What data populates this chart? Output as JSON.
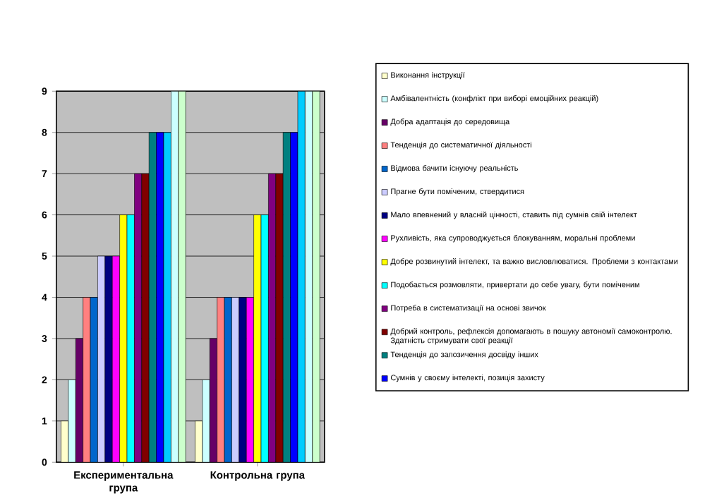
{
  "chart_data": {
    "type": "bar",
    "categories": [
      "Експериментальна група",
      "Контрольна група"
    ],
    "ylim": [
      0,
      9
    ],
    "yticks": [
      0,
      1,
      2,
      3,
      4,
      5,
      6,
      7,
      8,
      9
    ],
    "grid": "y",
    "legend": "right",
    "series": [
      {
        "name": "Виконання інструкції",
        "color": "#ffffcc",
        "values": [
          1,
          1
        ]
      },
      {
        "name": "Амбівалентність (конфлікт при виборі емоційних реакцій)",
        "color": "#ccffff",
        "values": [
          2,
          2
        ]
      },
      {
        "name": "Добра адаптація до середовища",
        "color": "#660066",
        "values": [
          3,
          3
        ]
      },
      {
        "name": "Тенденція до систематичної діяльності",
        "color": "#ff8080",
        "values": [
          4,
          4
        ]
      },
      {
        "name": "Відмова бачити існуючу реальність",
        "color": "#0066cc",
        "values": [
          4,
          4
        ]
      },
      {
        "name": "Прагне бути поміченим, ствердитися",
        "color": "#ccccff",
        "values": [
          5,
          4
        ]
      },
      {
        "name": "Мало впевнений у власній цінності, ставить під сумнів свій інтелект",
        "color": "#000080",
        "values": [
          5,
          4
        ]
      },
      {
        "name": "Рухливість, яка супроводжується блокуванням, моральні проблеми",
        "color": "#ff00ff",
        "values": [
          5,
          4
        ]
      },
      {
        "name": "Добре розвинутий інтелект, та важко висловлюватися. Проблеми з контактами",
        "color": "#ffff00",
        "values": [
          6,
          6
        ]
      },
      {
        "name": "Подобається розмовляти, привертати до себе увагу, бути поміченим",
        "color": "#00ffff",
        "values": [
          6,
          6
        ]
      },
      {
        "name": "Потреба в систематизації на основі звичок",
        "color": "#800080",
        "values": [
          7,
          7
        ]
      },
      {
        "name": "Добрий контроль, рефлексія допомагають в пошуку автономії самоконтролю. Здатність стримувати свої реакції",
        "color": "#800000",
        "values": [
          7,
          7
        ]
      },
      {
        "name": "Тенденція до запозичення досвіду інших",
        "color": "#008080",
        "values": [
          8,
          8
        ]
      },
      {
        "name": "Сумнів у своєму інтелекті, позиція захисту",
        "color": "#0000ff",
        "values": [
          8,
          8
        ]
      },
      {
        "color": "#00ccff",
        "values": [
          8,
          9
        ]
      },
      {
        "color": "#ccffff",
        "values": [
          9,
          9
        ]
      },
      {
        "color": "#ccffcc",
        "values": [
          9,
          9
        ]
      }
    ]
  }
}
